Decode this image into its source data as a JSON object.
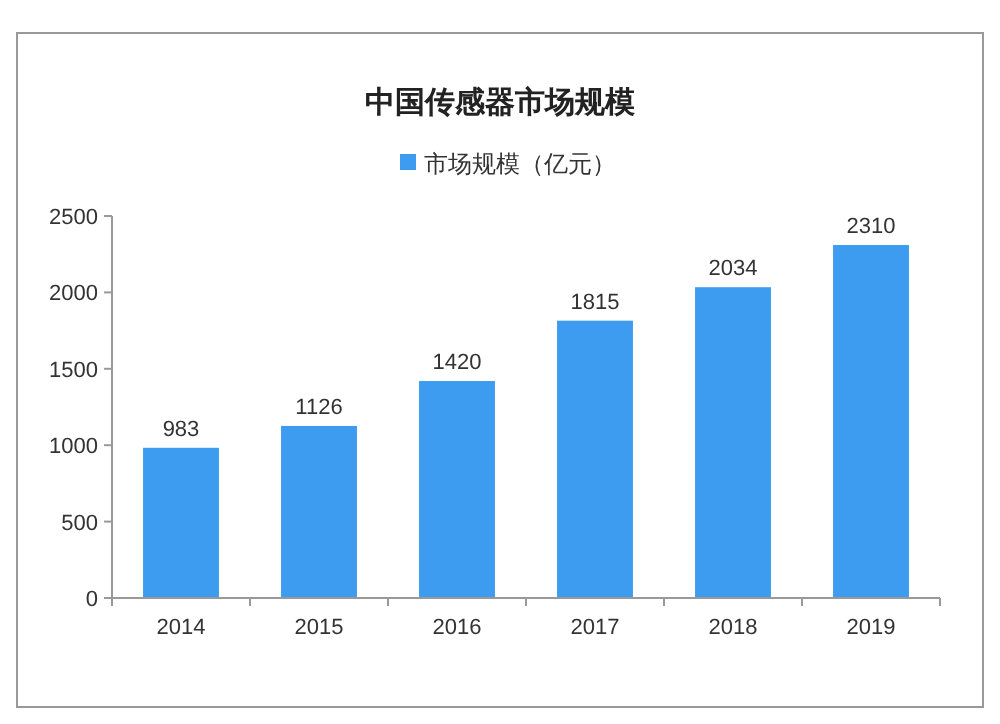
{
  "chart_data": {
    "type": "bar",
    "title": "中国传感器市场规模",
    "categories": [
      "2014",
      "2015",
      "2016",
      "2017",
      "2018",
      "2019"
    ],
    "series": [
      {
        "name": "市场规模（亿元）",
        "color": "#3d9cf0",
        "values": [
          983,
          1126,
          1420,
          1815,
          2034,
          2310
        ]
      }
    ],
    "ylim": [
      0,
      2500
    ],
    "yticks": [
      0,
      500,
      1000,
      1500,
      2000,
      2500
    ],
    "data_labels": true,
    "legend": "top",
    "grid": false
  }
}
